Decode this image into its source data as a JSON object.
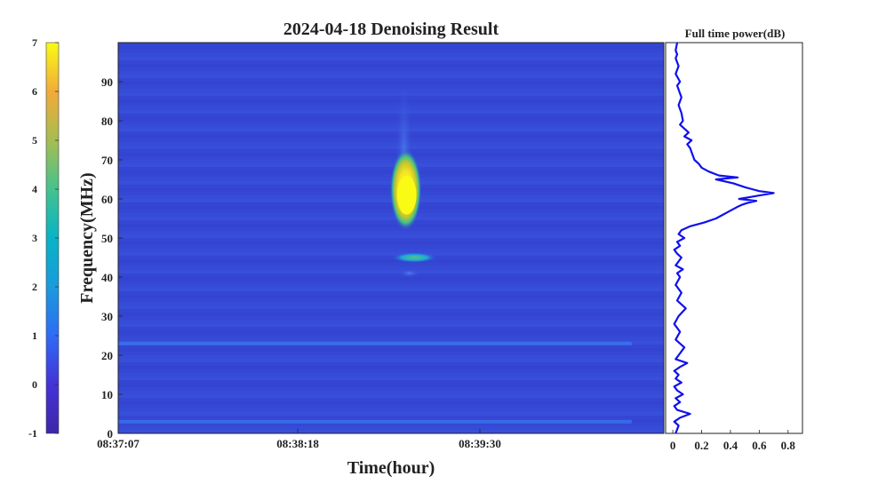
{
  "chart_data": [
    {
      "type": "heatmap",
      "title": "2024-04-18 Denoising Result",
      "xlabel": "Time(hour)",
      "ylabel": "Frequency(MHz)",
      "x_ticks": [
        "08:37:07",
        "08:38:18",
        "08:39:30"
      ],
      "y_ticks": [
        0,
        10,
        20,
        30,
        40,
        50,
        60,
        70,
        80,
        90
      ],
      "ylim": [
        0,
        100
      ],
      "colorbar": {
        "ticks": [
          -1,
          0,
          1,
          2,
          3,
          4,
          5,
          6,
          7
        ],
        "range": [
          -1,
          7
        ],
        "colormap": "parula"
      },
      "background_value": 0.3,
      "features": [
        {
          "name": "burst",
          "time": "08:39:00",
          "freq_range": [
            52,
            90
          ],
          "peak_freq": 61,
          "peak_value": 7
        },
        {
          "name": "band-45MHz",
          "time": "08:39:02",
          "freq": 45,
          "value": 2.6
        },
        {
          "name": "band-41MHz",
          "time": "08:39:00",
          "freq": 41,
          "value": 1.0
        },
        {
          "name": "band-23MHz",
          "time_range": [
            "08:37:07",
            "08:40:30"
          ],
          "freq": 23,
          "value": 0.9
        },
        {
          "name": "band-3MHz",
          "time_range": [
            "08:37:07",
            "08:40:30"
          ],
          "freq": 3,
          "value": 0.9
        }
      ],
      "colors": {
        "low": "#3e26a8",
        "background": "#3548d6",
        "mid": "#13beb8",
        "high": "#f9fb15"
      }
    },
    {
      "type": "line",
      "title": "Full time power(dB)",
      "x_ticks": [
        0,
        0.2,
        0.4,
        0.6,
        0.8
      ],
      "xlim": [
        -0.05,
        0.9
      ],
      "ylim": [
        0,
        100
      ],
      "line_color": "#1010ee",
      "series": [
        {
          "x": [
            0.02,
            0.04,
            0.01,
            0.05,
            0.12,
            0.03,
            0.01,
            0.05,
            0.02,
            0.07,
            0.03,
            0.01,
            0.06,
            0.02,
            0.04,
            0.01,
            0.05,
            0.1,
            0.02,
            0.04,
            0.08,
            0.02,
            0.05,
            0.01,
            0.04,
            0.09,
            0.03,
            0.06,
            0.02,
            0.05,
            0.03,
            0.07,
            0.02,
            0.04,
            0.06,
            0.03,
            0.01,
            0.05,
            0.03,
            0.08,
            0.04,
            0.06,
            0.12,
            0.22,
            0.3,
            0.35,
            0.4,
            0.45,
            0.48,
            0.52,
            0.58,
            0.46,
            0.54,
            0.62,
            0.7,
            0.6,
            0.55,
            0.5,
            0.42,
            0.3,
            0.45,
            0.32,
            0.25,
            0.2,
            0.18,
            0.15,
            0.14,
            0.13,
            0.12,
            0.1,
            0.13,
            0.08,
            0.11,
            0.08,
            0.05,
            0.07,
            0.06,
            0.04,
            0.06,
            0.04,
            0.03,
            0.05,
            0.02,
            0.04,
            0.02,
            0.03,
            0.02,
            0.03
          ],
          "y": [
            0,
            2,
            3,
            4,
            5,
            6,
            7,
            8,
            9,
            10,
            11,
            12,
            13,
            14,
            15,
            16,
            17,
            18,
            19,
            20,
            22,
            24,
            26,
            28,
            30,
            32,
            34,
            36,
            38,
            40,
            41,
            42,
            43,
            44,
            45,
            46,
            47,
            48,
            49,
            50,
            51,
            52,
            53,
            54,
            55,
            56,
            57,
            58,
            58.5,
            59,
            59.5,
            60,
            60.5,
            61,
            61.5,
            62,
            62.5,
            63,
            64,
            65,
            65.5,
            66,
            67,
            68,
            69,
            70,
            71,
            72,
            73,
            74,
            75,
            76,
            77,
            78,
            79,
            80,
            82,
            84,
            86,
            88,
            89,
            90,
            92,
            94,
            96,
            97,
            98,
            100
          ]
        }
      ]
    }
  ]
}
